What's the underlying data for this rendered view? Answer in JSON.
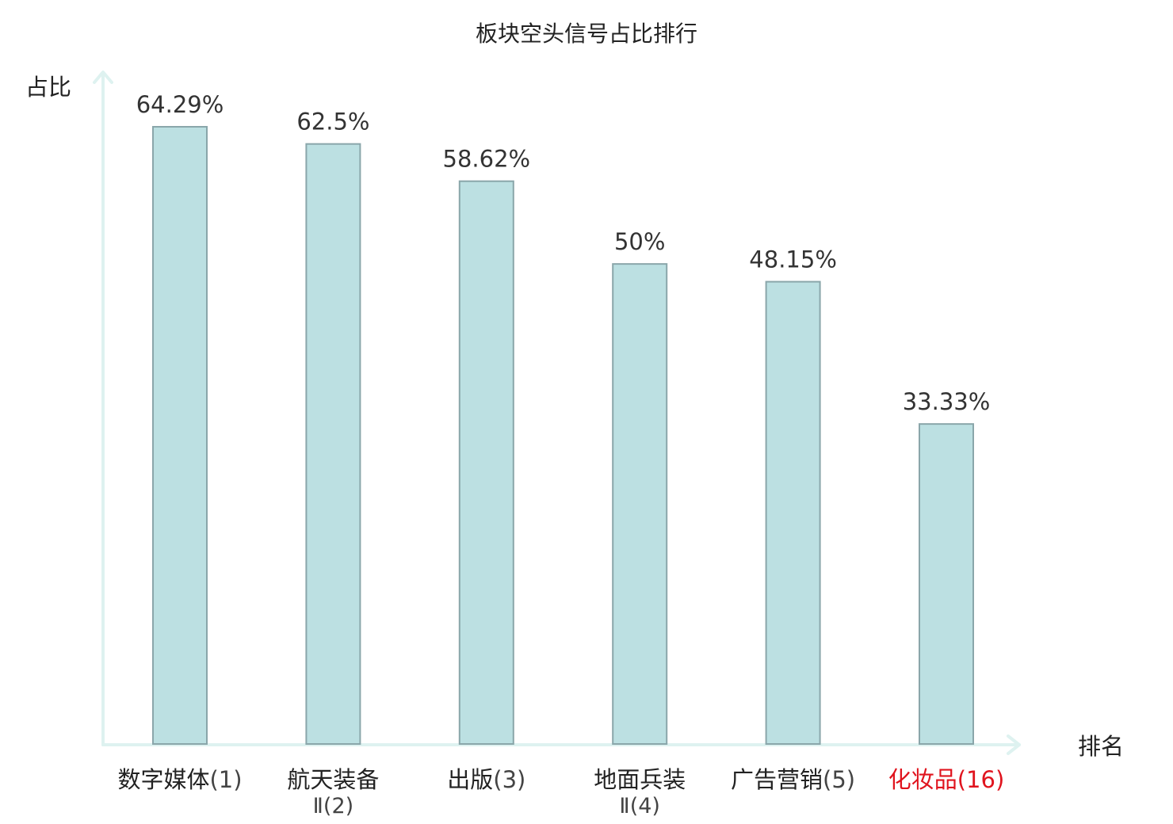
{
  "chart_data": {
    "type": "bar",
    "title": "板块空头信号占比排行",
    "ylabel": "占比",
    "xlabel": "排名",
    "ylim": [
      0,
      70
    ],
    "grid": false,
    "categories": [
      {
        "name": "数字媒体",
        "sub": "",
        "rank": "(1)",
        "highlight": false
      },
      {
        "name": "航天装备",
        "sub": "Ⅱ",
        "rank": "(2)",
        "highlight": false
      },
      {
        "name": "出版",
        "sub": "",
        "rank": "(3)",
        "highlight": false
      },
      {
        "name": "地面兵装",
        "sub": "Ⅱ",
        "rank": "(4)",
        "highlight": false
      },
      {
        "name": "广告营销",
        "sub": "",
        "rank": "(5)",
        "highlight": false
      },
      {
        "name": "化妆品",
        "sub": "",
        "rank": "(16)",
        "highlight": true
      }
    ],
    "values": [
      64.29,
      62.5,
      58.62,
      50,
      48.15,
      33.33
    ],
    "value_labels": [
      "64.29%",
      "62.5%",
      "58.62%",
      "50%",
      "48.15%",
      "33.33%"
    ]
  },
  "colors": {
    "bar_fill": "#bce0e2",
    "bar_stroke": "#8aa6aa",
    "axis": "#def2f0",
    "text": "#222222",
    "rank_text": "#444444",
    "highlight": "#e0141e"
  }
}
